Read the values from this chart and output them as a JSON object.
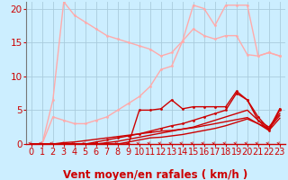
{
  "bg_color": "#cceeff",
  "grid_color": "#aaccdd",
  "xlabel": "Vent moyen/en rafales ( km/h )",
  "xlabel_color": "#cc0000",
  "xlabel_fontsize": 8.5,
  "tick_color": "#cc0000",
  "tick_fontsize": 7,
  "xlim": [
    -0.5,
    23.5
  ],
  "ylim": [
    0,
    21
  ],
  "series": [
    {
      "x": [
        0,
        1,
        2,
        3,
        4,
        5,
        6,
        7,
        8,
        9,
        10,
        11,
        12,
        13,
        14,
        15,
        16,
        17,
        18,
        19,
        20,
        21,
        22,
        23
      ],
      "y": [
        0,
        0,
        6.5,
        21,
        19,
        18,
        17,
        16,
        15.5,
        15,
        14.5,
        14,
        13,
        13.5,
        15.2,
        20.5,
        20,
        17.5,
        20.5,
        20.5,
        20.5,
        13,
        13.5,
        13
      ],
      "color": "#ffaaaa",
      "lw": 1.0,
      "marker": "o",
      "ms": 2.0,
      "zorder": 2
    },
    {
      "x": [
        0,
        1,
        2,
        3,
        4,
        5,
        6,
        7,
        8,
        9,
        10,
        11,
        12,
        13,
        14,
        15,
        16,
        17,
        18,
        19,
        20,
        21,
        22,
        23
      ],
      "y": [
        0,
        0,
        4,
        3.5,
        3,
        3,
        3.5,
        4,
        5,
        6,
        7,
        8.5,
        11,
        11.5,
        15.2,
        17,
        16,
        15.5,
        16,
        16,
        13.2,
        13,
        13.5,
        13
      ],
      "color": "#ffaaaa",
      "lw": 1.0,
      "marker": "o",
      "ms": 2.0,
      "zorder": 2
    },
    {
      "x": [
        0,
        1,
        2,
        3,
        4,
        5,
        6,
        7,
        8,
        9,
        10,
        11,
        12,
        13,
        14,
        15,
        16,
        17,
        18,
        19,
        20,
        21,
        22,
        23
      ],
      "y": [
        0,
        0,
        0,
        0,
        0,
        0,
        0,
        0,
        0,
        0,
        5,
        5,
        5.2,
        6.5,
        5.2,
        5.5,
        5.5,
        5.5,
        5.5,
        7.8,
        6.5,
        4,
        2.2,
        5.2
      ],
      "color": "#cc0000",
      "lw": 1.0,
      "marker": "o",
      "ms": 2.0,
      "zorder": 3
    },
    {
      "x": [
        0,
        1,
        2,
        3,
        4,
        5,
        6,
        7,
        8,
        9,
        10,
        11,
        12,
        13,
        14,
        15,
        16,
        17,
        18,
        19,
        20,
        21,
        22,
        23
      ],
      "y": [
        0,
        0,
        0,
        0,
        0,
        0,
        0.3,
        0.6,
        0.9,
        1.2,
        1.5,
        1.9,
        2.3,
        2.7,
        3.0,
        3.5,
        4.0,
        4.5,
        5.0,
        7.5,
        6.5,
        3.5,
        2.0,
        5.0
      ],
      "color": "#cc0000",
      "lw": 1.0,
      "marker": "o",
      "ms": 2.0,
      "zorder": 3
    },
    {
      "x": [
        0,
        1,
        2,
        3,
        4,
        5,
        6,
        7,
        8,
        9,
        10,
        11,
        12,
        13,
        14,
        15,
        16,
        17,
        18,
        19,
        20,
        21,
        22,
        23
      ],
      "y": [
        0,
        0,
        0,
        0,
        0,
        0,
        0,
        0.2,
        0.4,
        0.7,
        1.0,
        1.3,
        1.6,
        1.9,
        2.2,
        2.5,
        3.0,
        3.5,
        4.0,
        4.5,
        5.0,
        3.5,
        2.5,
        4.5
      ],
      "color": "#cc0000",
      "lw": 1.0,
      "marker": null,
      "ms": 0,
      "zorder": 3
    },
    {
      "x": [
        0,
        1,
        2,
        3,
        4,
        5,
        6,
        7,
        8,
        9,
        10,
        11,
        12,
        13,
        14,
        15,
        16,
        17,
        18,
        19,
        20,
        21,
        22,
        23
      ],
      "y": [
        0,
        0,
        0,
        0,
        0,
        0,
        0,
        0,
        0,
        0.3,
        0.6,
        0.9,
        1.0,
        1.2,
        1.4,
        1.7,
        2.0,
        2.3,
        2.7,
        3.2,
        3.7,
        3.0,
        2.3,
        4.2
      ],
      "color": "#cc0000",
      "lw": 1.0,
      "marker": null,
      "ms": 0,
      "zorder": 3
    },
    {
      "x": [
        0,
        1,
        2,
        3,
        4,
        5,
        6,
        7,
        8,
        9,
        10,
        11,
        12,
        13,
        14,
        15,
        16,
        17,
        18,
        19,
        20,
        21,
        22,
        23
      ],
      "y": [
        0,
        0,
        0,
        0.2,
        0.3,
        0.5,
        0.7,
        0.9,
        1.1,
        1.3,
        1.5,
        1.7,
        1.9,
        2.0,
        2.2,
        2.4,
        2.7,
        3.0,
        3.3,
        3.6,
        3.9,
        3.0,
        2.0,
        3.8
      ],
      "color": "#cc0000",
      "lw": 1.0,
      "marker": null,
      "ms": 0,
      "zorder": 3
    }
  ],
  "yticks": [
    0,
    5,
    10,
    15,
    20
  ],
  "xticks": [
    0,
    1,
    2,
    3,
    4,
    5,
    6,
    7,
    8,
    9,
    10,
    11,
    12,
    13,
    14,
    15,
    16,
    17,
    18,
    19,
    20,
    21,
    22,
    23
  ]
}
